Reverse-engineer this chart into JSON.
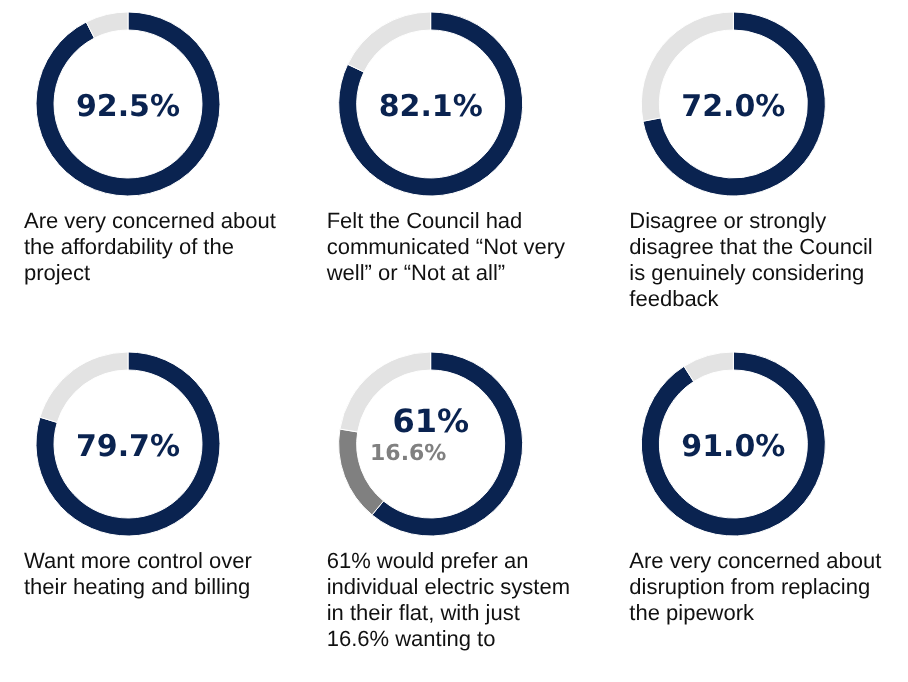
{
  "chart_data": [
    {
      "type": "donut",
      "categories": [
        null,
        null
      ],
      "values": [
        92.5,
        7.5
      ],
      "colors": [
        "#0a2350",
        "#e3e3e3"
      ],
      "value_labels": [
        "92.5%",
        null
      ],
      "annotations": [
        "Are very concerned about the affordability of the project"
      ]
    },
    {
      "type": "donut",
      "categories": [
        null,
        null
      ],
      "values": [
        82.1,
        17.9
      ],
      "colors": [
        "#0a2350",
        "#e3e3e3"
      ],
      "value_labels": [
        "82.1%",
        null
      ],
      "annotations": [
        "Felt the Council had communicated “Not very well” or “Not at all”"
      ]
    },
    {
      "type": "donut",
      "categories": [
        null,
        null
      ],
      "values": [
        72.0,
        28.0
      ],
      "colors": [
        "#0a2350",
        "#e3e3e3"
      ],
      "value_labels": [
        "72.0%",
        null
      ],
      "annotations": [
        "Disagree or strongly disagree that the Council is genuinely considering feedback"
      ]
    },
    {
      "type": "donut",
      "categories": [
        null,
        null
      ],
      "values": [
        79.7,
        20.3
      ],
      "colors": [
        "#0a2350",
        "#e3e3e3"
      ],
      "value_labels": [
        "79.7%",
        null
      ],
      "annotations": [
        "Want more control over their heating and billing"
      ]
    },
    {
      "type": "donut",
      "categories": [
        null,
        null,
        null
      ],
      "values": [
        61,
        16.6,
        22.4
      ],
      "colors": [
        "#0a2350",
        "#808080",
        "#e3e3e3"
      ],
      "value_labels": [
        "61%",
        "16.6%",
        null
      ],
      "annotations": [
        "61% would prefer an individual electric system in their flat, with just 16.6% wanting to"
      ]
    },
    {
      "type": "donut",
      "categories": [
        null,
        null
      ],
      "values": [
        91.0,
        9.0
      ],
      "colors": [
        "#0a2350",
        "#e3e3e3"
      ],
      "value_labels": [
        "91.0%",
        null
      ],
      "annotations": [
        "Are very concerned about disruption from replacing the pipework"
      ]
    }
  ]
}
